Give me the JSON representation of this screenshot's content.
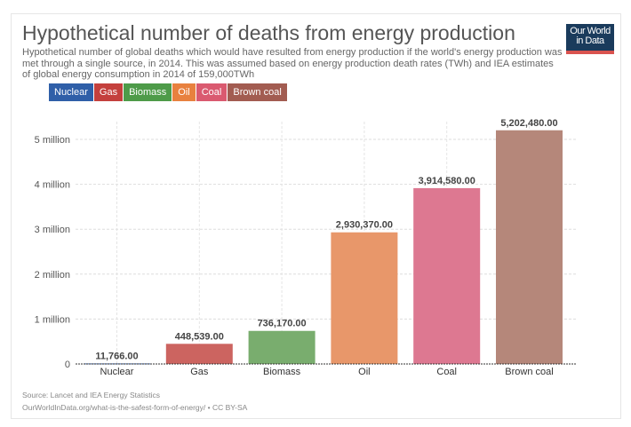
{
  "header": {
    "title": "Hypothetical number of deaths from energy production",
    "subtitle": "Hypothetical number of global deaths which would have resulted from energy production if the world's energy production was met through a single source, in 2014. This was assumed based on energy production death rates (TWh) and IEA estimates of global energy consumption in 2014 of 159,000TWh",
    "logo": "Our World in Data"
  },
  "footer": {
    "source": "Source: Lancet and IEA Energy Statistics",
    "url": "OurWorldInData.org/what-is-the-safest-form-of-energy/ • CC BY-SA"
  },
  "chart_data": {
    "type": "bar",
    "title": "Hypothetical number of deaths from energy production",
    "categories": [
      "Nuclear",
      "Gas",
      "Biomass",
      "Oil",
      "Coal",
      "Brown coal"
    ],
    "values": [
      11766,
      448539,
      736170,
      2930370,
      3914580,
      5202480
    ],
    "data_labels": [
      "11,766.00",
      "448,539.00",
      "736,170.00",
      "2,930,370.00",
      "3,914,580.00",
      "5,202,480.00"
    ],
    "bar_colors": [
      "#3a64ad",
      "#cc6460",
      "#79ad6e",
      "#e8976a",
      "#dd7891",
      "#b5877a"
    ],
    "legend": {
      "placement": "top-left",
      "entries": [
        "Nuclear",
        "Gas",
        "Biomass",
        "Oil",
        "Coal",
        "Brown coal"
      ],
      "colors": [
        "#2f5fa8",
        "#c4403d",
        "#4e9b49",
        "#e8813f",
        "#da5a70",
        "#a25c51"
      ]
    },
    "yticks": [
      0,
      1000000,
      2000000,
      3000000,
      4000000,
      5000000
    ],
    "ytick_labels": [
      "0",
      "1 million",
      "2 million",
      "3 million",
      "4 million",
      "5 million"
    ],
    "ylim": [
      0,
      5000000
    ],
    "grid": true,
    "xlabel": "",
    "ylabel": ""
  }
}
